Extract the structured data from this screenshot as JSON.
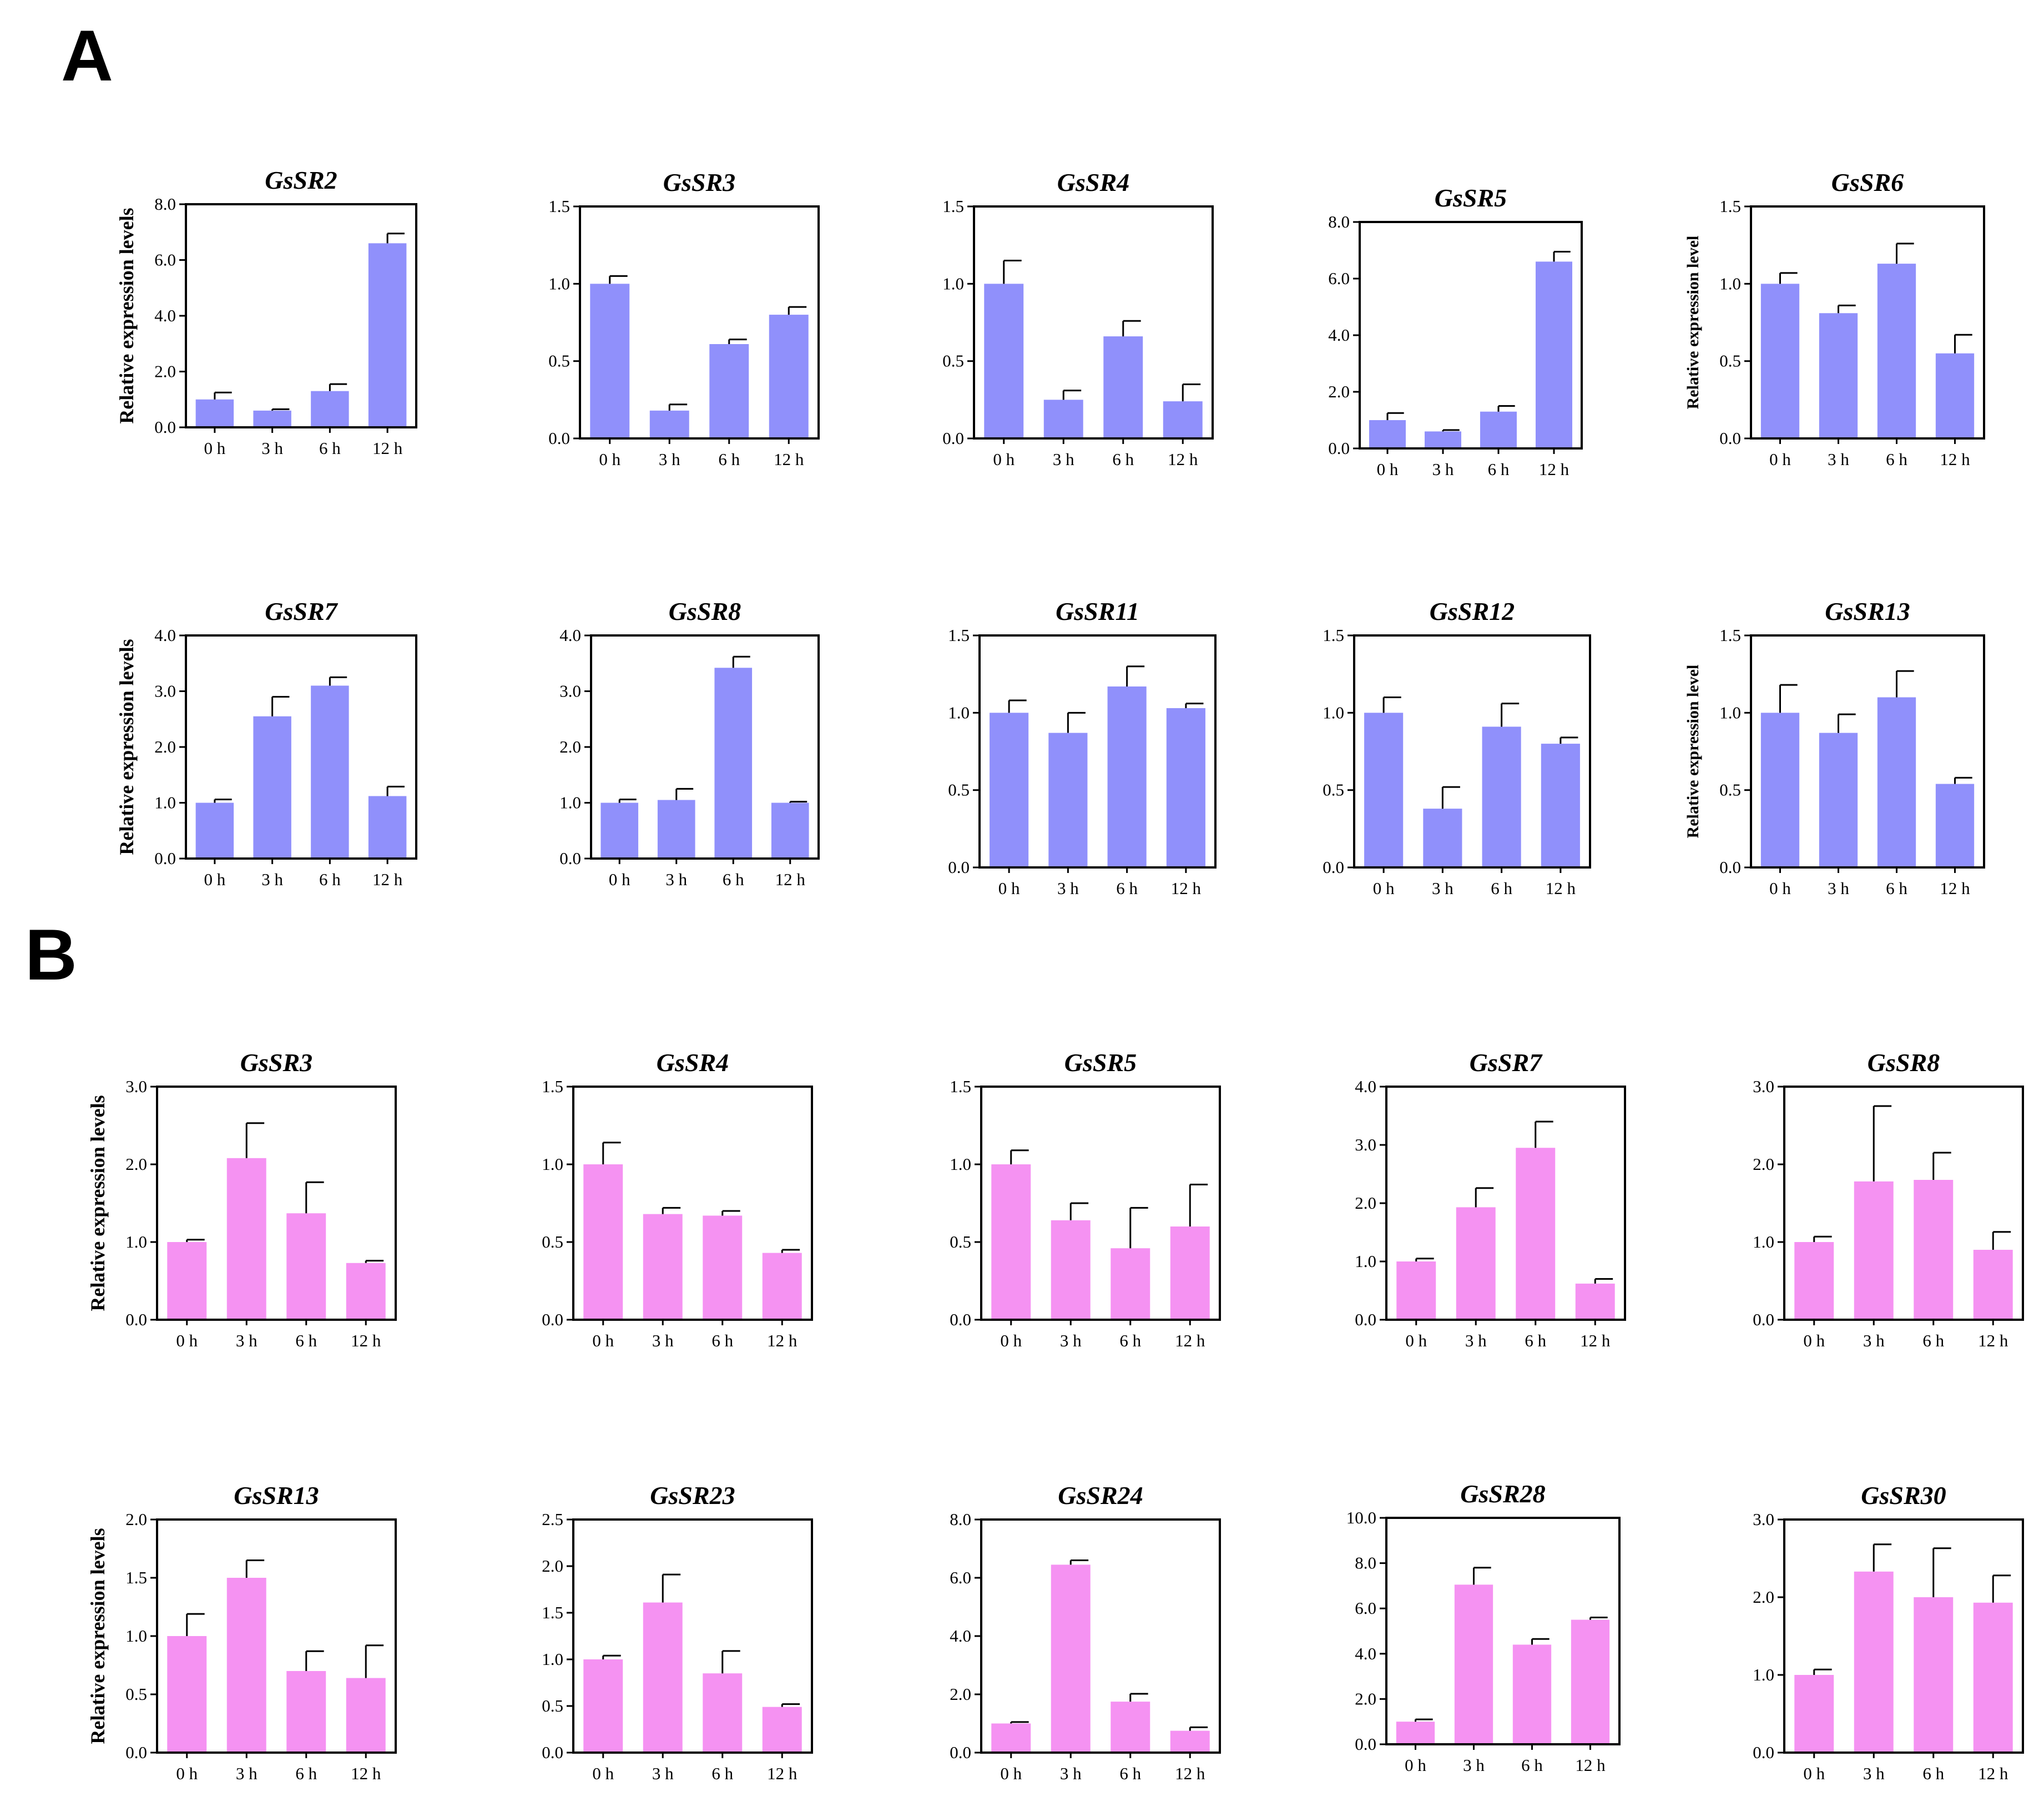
{
  "panels": [
    {
      "label": "A",
      "bar_color": "#9090fb"
    },
    {
      "label": "B",
      "bar_color": "#f592f2"
    }
  ],
  "chart_data": [
    {
      "type": "bar",
      "panel": "A",
      "title": "GsSR2",
      "ylabel": "Relative expression levels",
      "categories": [
        "0 h",
        "3 h",
        "6 h",
        "12 h"
      ],
      "values": [
        1.0,
        0.6,
        1.3,
        6.6
      ],
      "errors": [
        0.25,
        0.05,
        0.25,
        0.35
      ],
      "ylim": [
        0,
        8
      ],
      "yticks": [
        "0.0",
        "2.0",
        "4.0",
        "6.0",
        "8.0"
      ]
    },
    {
      "type": "bar",
      "panel": "A",
      "title": "GsSR3",
      "ylabel": "",
      "categories": [
        "0 h",
        "3 h",
        "6 h",
        "12 h"
      ],
      "values": [
        1.0,
        0.18,
        0.61,
        0.8
      ],
      "errors": [
        0.05,
        0.04,
        0.03,
        0.05
      ],
      "ylim": [
        0,
        1.5
      ],
      "yticks": [
        "0.0",
        "0.5",
        "1.0",
        "1.5"
      ]
    },
    {
      "type": "bar",
      "panel": "A",
      "title": "GsSR4",
      "ylabel": "",
      "categories": [
        "0 h",
        "3 h",
        "6 h",
        "12 h"
      ],
      "values": [
        1.0,
        0.25,
        0.66,
        0.24
      ],
      "errors": [
        0.15,
        0.06,
        0.1,
        0.11
      ],
      "ylim": [
        0,
        1.5
      ],
      "yticks": [
        "0.0",
        "0.5",
        "1.0",
        "1.5"
      ]
    },
    {
      "type": "bar",
      "panel": "A",
      "title": "GsSR5",
      "ylabel": "",
      "categories": [
        "0 h",
        "3 h",
        "6 h",
        "12 h"
      ],
      "values": [
        1.0,
        0.6,
        1.3,
        6.6
      ],
      "errors": [
        0.25,
        0.05,
        0.2,
        0.35
      ],
      "ylim": [
        0,
        8
      ],
      "yticks": [
        "0.0",
        "2.0",
        "4.0",
        "6.0",
        "8.0"
      ]
    },
    {
      "type": "bar",
      "panel": "A",
      "title": "GsSR6",
      "ylabel": "Relative expression level",
      "categories": [
        "0 h",
        "3 h",
        "6 h",
        "12 h"
      ],
      "values": [
        1.0,
        0.81,
        1.13,
        0.55
      ],
      "errors": [
        0.07,
        0.05,
        0.13,
        0.12
      ],
      "ylim": [
        0,
        1.5
      ],
      "yticks": [
        "0.0",
        "0.5",
        "1.0",
        "1.5"
      ]
    },
    {
      "type": "bar",
      "panel": "A",
      "title": "GsSR7",
      "ylabel": "Relative expression levels",
      "categories": [
        "0 h",
        "3 h",
        "6 h",
        "12 h"
      ],
      "values": [
        1.0,
        2.55,
        3.1,
        1.12
      ],
      "errors": [
        0.06,
        0.35,
        0.15,
        0.17
      ],
      "ylim": [
        0,
        4
      ],
      "yticks": [
        "0.0",
        "1.0",
        "2.0",
        "3.0",
        "4.0"
      ]
    },
    {
      "type": "bar",
      "panel": "A",
      "title": "GsSR8",
      "ylabel": "",
      "categories": [
        "0 h",
        "3 h",
        "6 h",
        "12 h"
      ],
      "values": [
        1.0,
        1.05,
        3.42,
        1.0
      ],
      "errors": [
        0.06,
        0.2,
        0.2,
        0.02
      ],
      "ylim": [
        0,
        4
      ],
      "yticks": [
        "0.0",
        "1.0",
        "2.0",
        "3.0",
        "4.0"
      ]
    },
    {
      "type": "bar",
      "panel": "A",
      "title": "GsSR11",
      "ylabel": "",
      "categories": [
        "0 h",
        "3 h",
        "6 h",
        "12 h"
      ],
      "values": [
        1.0,
        0.87,
        1.17,
        1.03
      ],
      "errors": [
        0.08,
        0.13,
        0.13,
        0.03
      ],
      "ylim": [
        0,
        1.5
      ],
      "yticks": [
        "0.0",
        "0.5",
        "1.0",
        "1.5"
      ]
    },
    {
      "type": "bar",
      "panel": "A",
      "title": "GsSR12",
      "ylabel": "",
      "categories": [
        "0 h",
        "3 h",
        "6 h",
        "12 h"
      ],
      "values": [
        1.0,
        0.38,
        0.91,
        0.8
      ],
      "errors": [
        0.1,
        0.14,
        0.15,
        0.04
      ],
      "ylim": [
        0,
        1.5
      ],
      "yticks": [
        "0.0",
        "0.5",
        "1.0",
        "1.5"
      ]
    },
    {
      "type": "bar",
      "panel": "A",
      "title": "GsSR13",
      "ylabel": "Relative expression level",
      "categories": [
        "0 h",
        "3 h",
        "6 h",
        "12 h"
      ],
      "values": [
        1.0,
        0.87,
        1.1,
        0.54
      ],
      "errors": [
        0.18,
        0.12,
        0.17,
        0.04
      ],
      "ylim": [
        0,
        1.5
      ],
      "yticks": [
        "0.0",
        "0.5",
        "1.0",
        "1.5"
      ]
    },
    {
      "type": "bar",
      "panel": "B",
      "title": "GsSR3",
      "ylabel": "Relative expression levels",
      "categories": [
        "0 h",
        "3 h",
        "6 h",
        "12 h"
      ],
      "values": [
        1.0,
        2.08,
        1.37,
        0.73
      ],
      "errors": [
        0.03,
        0.45,
        0.4,
        0.03
      ],
      "ylim": [
        0,
        3
      ],
      "yticks": [
        "0.0",
        "1.0",
        "2.0",
        "3.0"
      ]
    },
    {
      "type": "bar",
      "panel": "B",
      "title": "GsSR4",
      "ylabel": "",
      "categories": [
        "0 h",
        "3 h",
        "6 h",
        "12 h"
      ],
      "values": [
        1.0,
        0.68,
        0.67,
        0.43
      ],
      "errors": [
        0.14,
        0.04,
        0.03,
        0.02
      ],
      "ylim": [
        0,
        1.5
      ],
      "yticks": [
        "0.0",
        "0.5",
        "1.0",
        "1.5"
      ]
    },
    {
      "type": "bar",
      "panel": "B",
      "title": "GsSR5",
      "ylabel": "",
      "categories": [
        "0 h",
        "3 h",
        "6 h",
        "12 h"
      ],
      "values": [
        1.0,
        0.64,
        0.46,
        0.6
      ],
      "errors": [
        0.09,
        0.11,
        0.26,
        0.27
      ],
      "ylim": [
        0,
        1.5
      ],
      "yticks": [
        "0.0",
        "0.5",
        "1.0",
        "1.5"
      ]
    },
    {
      "type": "bar",
      "panel": "B",
      "title": "GsSR7",
      "ylabel": "",
      "categories": [
        "0 h",
        "3 h",
        "6 h",
        "12 h"
      ],
      "values": [
        1.0,
        1.93,
        2.95,
        0.62
      ],
      "errors": [
        0.05,
        0.33,
        0.45,
        0.08
      ],
      "ylim": [
        0,
        4
      ],
      "yticks": [
        "0.0",
        "1.0",
        "2.0",
        "3.0",
        "4.0"
      ]
    },
    {
      "type": "bar",
      "panel": "B",
      "title": "GsSR8",
      "ylabel": "",
      "categories": [
        "0 h",
        "3 h",
        "6 h",
        "12 h"
      ],
      "values": [
        1.0,
        1.78,
        1.8,
        0.9
      ],
      "errors": [
        0.07,
        0.97,
        0.35,
        0.23
      ],
      "ylim": [
        0,
        3
      ],
      "yticks": [
        "0.0",
        "1.0",
        "2.0",
        "3.0"
      ]
    },
    {
      "type": "bar",
      "panel": "B",
      "title": "GsSR13",
      "ylabel": "Relative expression levels",
      "categories": [
        "0 h",
        "3 h",
        "6 h",
        "12 h"
      ],
      "values": [
        1.0,
        1.5,
        0.7,
        0.64
      ],
      "errors": [
        0.19,
        0.15,
        0.17,
        0.28
      ],
      "ylim": [
        0,
        2
      ],
      "yticks": [
        "0.0",
        "0.5",
        "1.0",
        "1.5",
        "2.0"
      ]
    },
    {
      "type": "bar",
      "panel": "B",
      "title": "GsSR23",
      "ylabel": "",
      "categories": [
        "0 h",
        "3 h",
        "6 h",
        "12 h"
      ],
      "values": [
        1.0,
        1.61,
        0.85,
        0.49
      ],
      "errors": [
        0.04,
        0.3,
        0.24,
        0.03
      ],
      "ylim": [
        0,
        2.5
      ],
      "yticks": [
        "0.0",
        "0.5",
        "1.0",
        "1.5",
        "2.0",
        "2.5"
      ]
    },
    {
      "type": "bar",
      "panel": "B",
      "title": "GsSR24",
      "ylabel": "",
      "categories": [
        "0 h",
        "3 h",
        "6 h",
        "12 h"
      ],
      "values": [
        1.0,
        6.45,
        1.75,
        0.75
      ],
      "errors": [
        0.05,
        0.15,
        0.27,
        0.12
      ],
      "ylim": [
        0,
        8
      ],
      "yticks": [
        "0.0",
        "2.0",
        "4.0",
        "6.0",
        "8.0"
      ]
    },
    {
      "type": "bar",
      "panel": "B",
      "title": "GsSR28",
      "ylabel": "",
      "categories": [
        "0 h",
        "3 h",
        "6 h",
        "12 h"
      ],
      "values": [
        1.0,
        7.05,
        4.4,
        5.5
      ],
      "errors": [
        0.1,
        0.75,
        0.25,
        0.1
      ],
      "ylim": [
        0,
        10
      ],
      "yticks": [
        "0.0",
        "2.0",
        "4.0",
        "6.0",
        "8.0",
        "10.0"
      ]
    },
    {
      "type": "bar",
      "panel": "B",
      "title": "GsSR30",
      "ylabel": "",
      "categories": [
        "0 h",
        "3 h",
        "6 h",
        "12 h"
      ],
      "values": [
        1.0,
        2.33,
        2.0,
        1.93
      ],
      "errors": [
        0.07,
        0.35,
        0.63,
        0.35
      ],
      "ylim": [
        0,
        3
      ],
      "yticks": [
        "0.0",
        "1.0",
        "2.0",
        "3.0"
      ]
    }
  ]
}
